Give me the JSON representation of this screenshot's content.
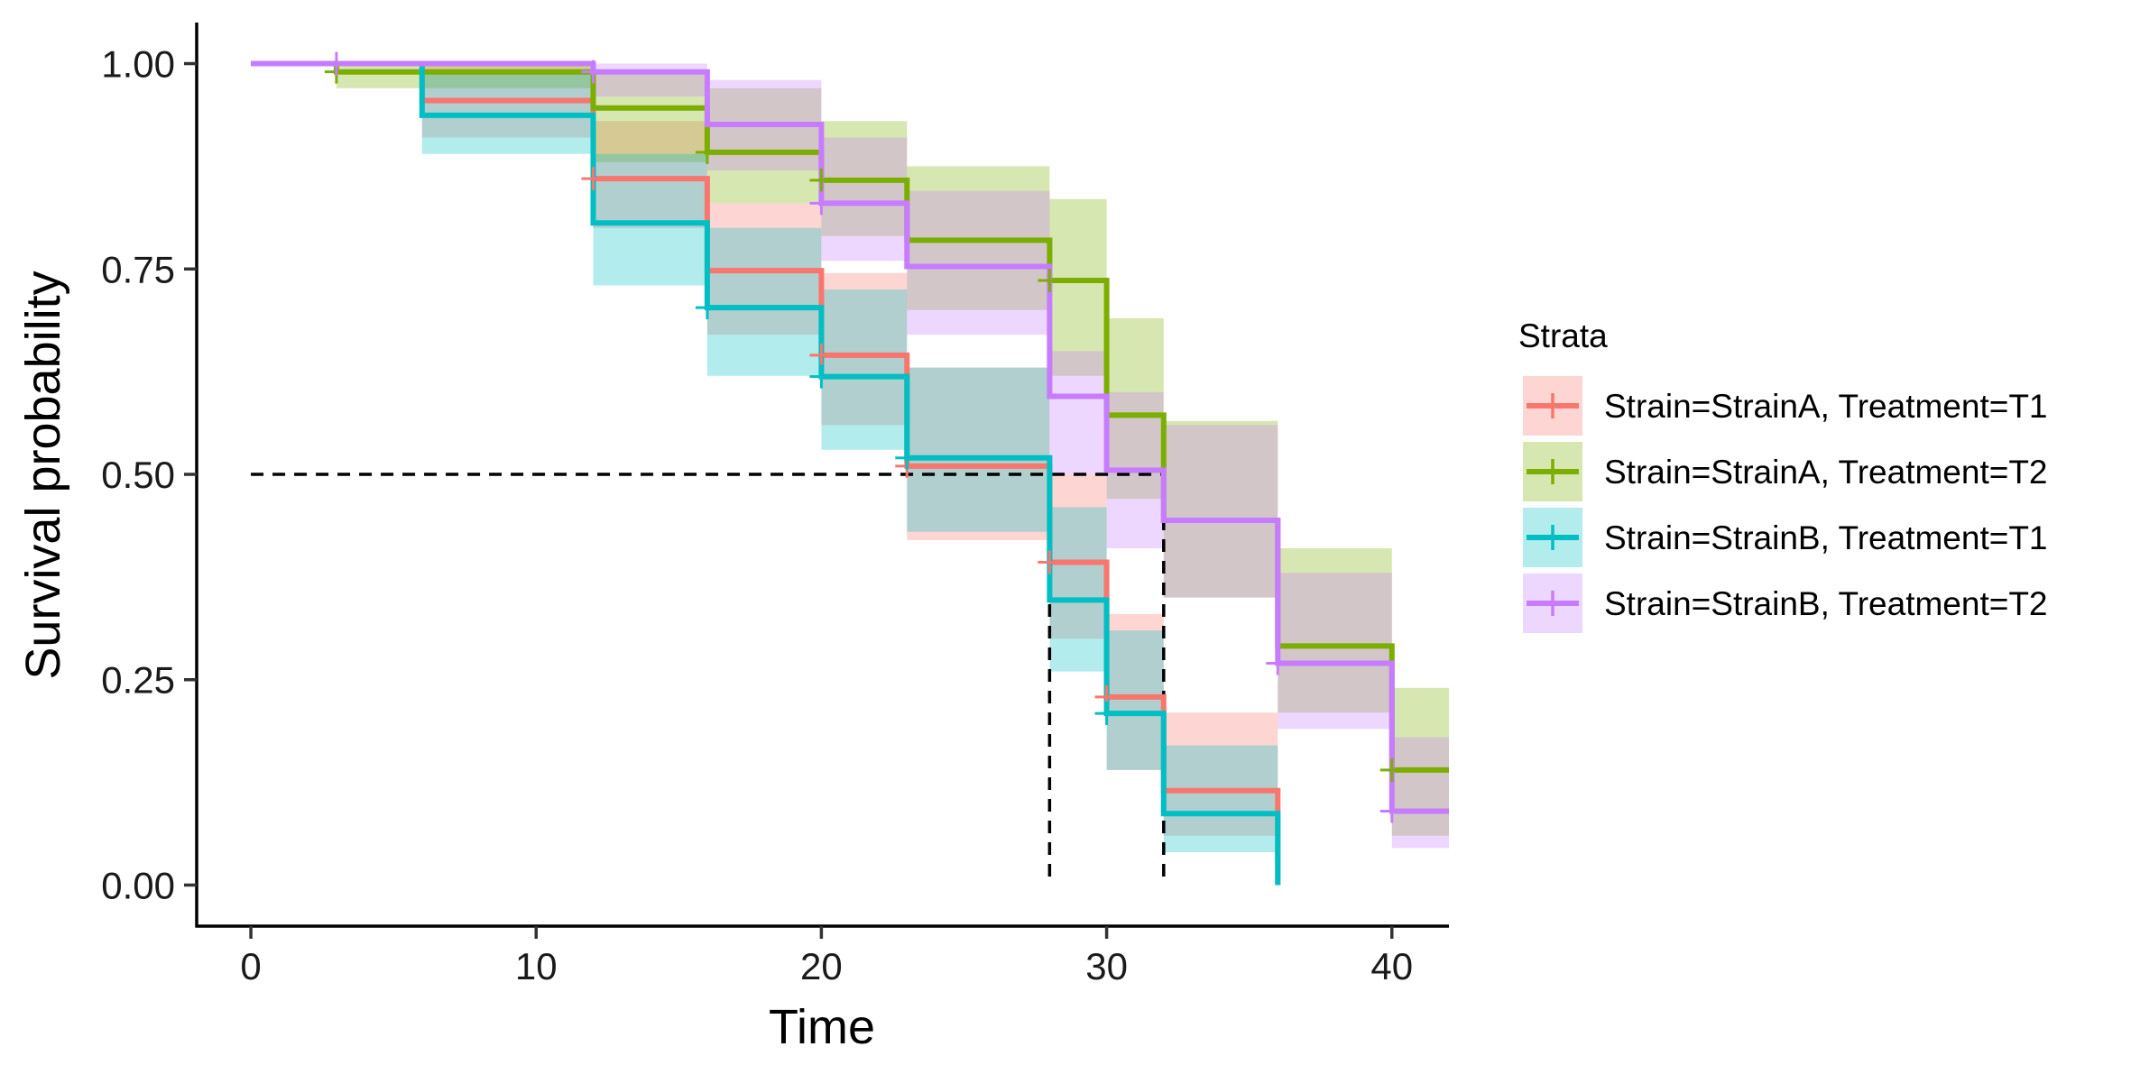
{
  "chart_data": {
    "type": "line",
    "subtype": "kaplan-meier step survival curves with confidence bands",
    "title": "",
    "xlabel": "Time",
    "ylabel": "Survival probability",
    "xlim": [
      -1.9,
      42
    ],
    "ylim": [
      -0.05,
      1.05
    ],
    "xticks": [
      0,
      10,
      20,
      30,
      40
    ],
    "xtick_labels": [
      "0",
      "10",
      "20",
      "30",
      "40"
    ],
    "yticks": [
      0,
      0.25,
      0.5,
      0.75,
      1
    ],
    "ytick_labels": [
      "0.00",
      "0.25",
      "0.50",
      "0.75",
      "1.00"
    ],
    "grid": false,
    "legend": {
      "title": "Strata",
      "position": "right"
    },
    "median_line": {
      "y": 0.5,
      "x_end": 32,
      "verticals": [
        28,
        32
      ],
      "style": "dashed"
    },
    "series": [
      {
        "name": "Strain=StrainA, Treatment=T1",
        "color": "#F8766D",
        "time": [
          0,
          6,
          12,
          16,
          20,
          23,
          28,
          30,
          32,
          36
        ],
        "surv": [
          1.0,
          0.955,
          0.86,
          0.748,
          0.645,
          0.51,
          0.393,
          0.229,
          0.115,
          0.09
        ],
        "lower": [
          1.0,
          0.91,
          0.8,
          0.67,
          0.56,
          0.42,
          0.3,
          0.14,
          0.06,
          0.04
        ],
        "upper": [
          1.0,
          1.0,
          0.93,
          0.83,
          0.745,
          0.63,
          0.5,
          0.33,
          0.21,
          0.17
        ],
        "end_time": 36,
        "end_surv": 0.0,
        "censor_times": [
          12,
          20,
          23,
          28,
          30
        ],
        "censor_surv": [
          0.86,
          0.645,
          0.51,
          0.393,
          0.229
        ]
      },
      {
        "name": "Strain=StrainA, Treatment=T2",
        "color": "#7CAE00",
        "time": [
          0,
          3,
          12,
          16,
          20,
          23,
          28,
          30,
          32,
          36,
          40
        ],
        "surv": [
          1.0,
          0.99,
          0.946,
          0.892,
          0.858,
          0.785,
          0.736,
          0.572,
          0.444,
          0.291,
          0.14
        ],
        "lower": [
          1.0,
          0.97,
          0.88,
          0.83,
          0.79,
          0.7,
          0.62,
          0.47,
          0.35,
          0.21,
          0.06
        ],
        "upper": [
          1.0,
          1.0,
          0.99,
          0.97,
          0.93,
          0.875,
          0.835,
          0.69,
          0.565,
          0.41,
          0.24
        ],
        "end_time": 42,
        "end_surv": 0.14,
        "censor_times": [
          3,
          16,
          20,
          28,
          40
        ],
        "censor_surv": [
          0.99,
          0.892,
          0.858,
          0.736,
          0.14
        ]
      },
      {
        "name": "Strain=StrainB, Treatment=T1",
        "color": "#00BFC4",
        "time": [
          0,
          6,
          12,
          16,
          20,
          23,
          28,
          30,
          32
        ],
        "surv": [
          1.0,
          0.937,
          0.806,
          0.703,
          0.619,
          0.52,
          0.347,
          0.209,
          0.087
        ],
        "lower": [
          1.0,
          0.89,
          0.73,
          0.62,
          0.53,
          0.43,
          0.26,
          0.14,
          0.04
        ],
        "upper": [
          1.0,
          0.99,
          0.89,
          0.8,
          0.725,
          0.63,
          0.46,
          0.31,
          0.17
        ],
        "end_time": 36,
        "end_surv": 0.0,
        "censor_times": [
          16,
          20,
          23,
          30
        ],
        "censor_surv": [
          0.703,
          0.619,
          0.52,
          0.209
        ]
      },
      {
        "name": "Strain=StrainB, Treatment=T2",
        "color": "#C77CFF",
        "time": [
          0,
          12,
          16,
          20,
          23,
          28,
          30,
          32,
          36,
          40
        ],
        "surv": [
          1.0,
          0.99,
          0.926,
          0.83,
          0.753,
          0.595,
          0.505,
          0.444,
          0.27,
          0.09
        ],
        "lower": [
          1.0,
          0.96,
          0.87,
          0.76,
          0.67,
          0.5,
          0.41,
          0.35,
          0.19,
          0.045
        ],
        "upper": [
          1.0,
          1.0,
          0.98,
          0.91,
          0.845,
          0.65,
          0.6,
          0.56,
          0.38,
          0.18
        ],
        "end_time": 42,
        "end_surv": 0.09,
        "censor_times": [
          3,
          12,
          20,
          36,
          40
        ],
        "censor_surv": [
          1.0,
          0.99,
          0.83,
          0.27,
          0.09
        ]
      }
    ]
  }
}
